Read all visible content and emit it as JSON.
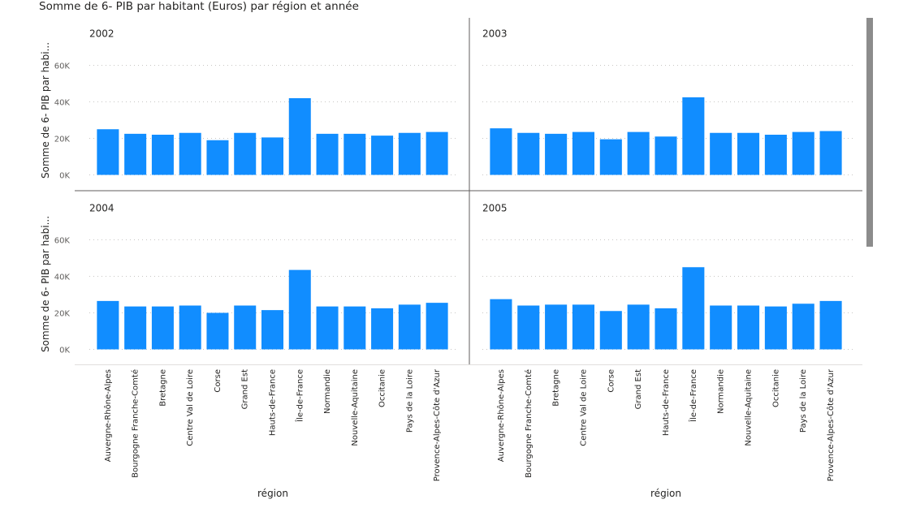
{
  "title": "Somme de 6- PIB par habitant (Euros) par région et année",
  "ylabel": "Somme de 6- PIB par habi...",
  "xlabel": "région",
  "colors": {
    "bar": "#118dff",
    "grid": "#c8c6c4",
    "divider": "#605e5c",
    "text": "#252423"
  },
  "chart_data": {
    "type": "bar",
    "small_multiples": "année",
    "categories": [
      "Auvergne-Rhône-Alpes",
      "Bourgogne Franche-Comté",
      "Bretagne",
      "Centre Val de Loire",
      "Corse",
      "Grand Est",
      "Hauts-de-France",
      "Île-de-France",
      "Normandie",
      "Nouvelle-Aquitaine",
      "Occitanie",
      "Pays de la Loire",
      "Provence-Alpes-Côte d'Azur"
    ],
    "ylim": [
      0,
      65000
    ],
    "yticks": [
      0,
      20000,
      40000,
      60000
    ],
    "ytick_labels": [
      "0K",
      "20K",
      "40K",
      "60K"
    ],
    "grid": true,
    "panels": [
      {
        "year": "2002",
        "values": [
          25000,
          22500,
          22000,
          23000,
          19000,
          23000,
          20500,
          42000,
          22500,
          22500,
          21500,
          23000,
          23500
        ]
      },
      {
        "year": "2003",
        "values": [
          25500,
          23000,
          22500,
          23500,
          19500,
          23500,
          21000,
          42500,
          23000,
          23000,
          22000,
          23500,
          24000
        ]
      },
      {
        "year": "2004",
        "values": [
          26500,
          23500,
          23500,
          24000,
          20000,
          24000,
          21500,
          43500,
          23500,
          23500,
          22500,
          24500,
          25500
        ]
      },
      {
        "year": "2005",
        "values": [
          27500,
          24000,
          24500,
          24500,
          21000,
          24500,
          22500,
          45000,
          24000,
          24000,
          23500,
          25000,
          26500
        ]
      }
    ]
  }
}
